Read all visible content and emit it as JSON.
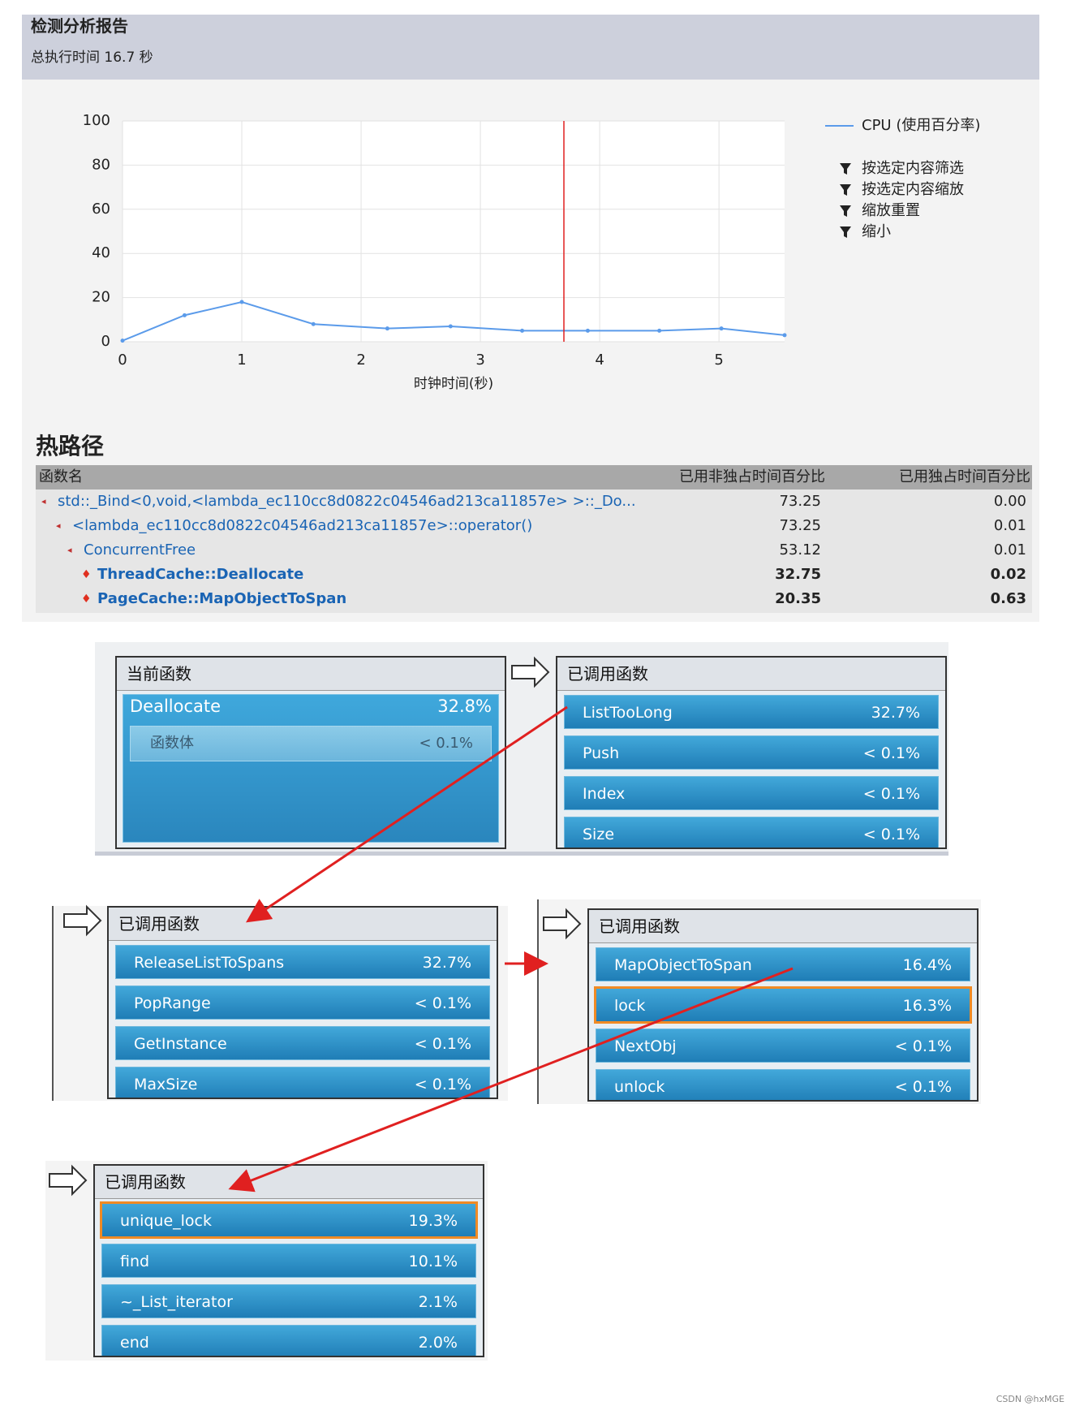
{
  "header": {
    "title": "检测分析报告",
    "subtitle": "总执行时间 16.7 秒"
  },
  "chart_data": {
    "type": "line",
    "xlabel": "时钟时间(秒)",
    "x": [
      0,
      0.52,
      1,
      1.6,
      2.22,
      2.75,
      3.35,
      3.9,
      4.5,
      5.02,
      5.55
    ],
    "series": [
      {
        "name": "CPU (使用百分率)",
        "color": "#5b9bea",
        "values": [
          0.5,
          12,
          18,
          8,
          6,
          7,
          5,
          5,
          5,
          6,
          3
        ]
      }
    ],
    "xlim": [
      0,
      5.55
    ],
    "ylim": [
      0,
      100
    ],
    "xticks": [
      0,
      1,
      2,
      3,
      4,
      5
    ],
    "yticks": [
      0,
      20,
      40,
      60,
      80,
      100
    ],
    "grid": true,
    "cursor_x": 3.7,
    "cursor_color": "#e02020",
    "menu": [
      "按选定内容筛选",
      "按选定内容缩放",
      "缩放重置",
      "缩小"
    ]
  },
  "hot_path": {
    "title": "热路径",
    "columns": [
      "函数名",
      "已用非独占时间百分比",
      "已用独占时间百分比"
    ],
    "rows": [
      {
        "name": "std::_Bind<0,void,<lambda_ec110cc8d0822c04546ad213ca11857e> >::_Do...",
        "inclusive": "73.25",
        "exclusive": "0.00",
        "level": 0,
        "hot": false
      },
      {
        "name": "<lambda_ec110cc8d0822c04546ad213ca11857e>::operator()",
        "inclusive": "73.25",
        "exclusive": "0.01",
        "level": 1,
        "hot": false
      },
      {
        "name": "ConcurrentFree",
        "inclusive": "53.12",
        "exclusive": "0.01",
        "level": 2,
        "hot": false
      },
      {
        "name": "ThreadCache::Deallocate",
        "inclusive": "32.75",
        "exclusive": "0.02",
        "level": 3,
        "hot": true
      },
      {
        "name": "PageCache::MapObjectToSpan",
        "inclusive": "20.35",
        "exclusive": "0.63",
        "level": 3,
        "hot": true
      }
    ]
  },
  "current": {
    "title": "当前函数",
    "name": "Deallocate",
    "value": "32.8%",
    "sub_name": "函数体",
    "sub_value": "< 0.1%"
  },
  "panels": [
    {
      "title": "已调用函数",
      "items": [
        {
          "name": "ListTooLong",
          "value": "32.7%"
        },
        {
          "name": "Push",
          "value": "< 0.1%"
        },
        {
          "name": "Index",
          "value": "< 0.1%"
        },
        {
          "name": "Size",
          "value": "< 0.1%"
        }
      ]
    },
    {
      "title": "已调用函数",
      "items": [
        {
          "name": "ReleaseListToSpans",
          "value": "32.7%"
        },
        {
          "name": "PopRange",
          "value": "< 0.1%"
        },
        {
          "name": "GetInstance",
          "value": "< 0.1%"
        },
        {
          "name": "MaxSize",
          "value": "< 0.1%"
        }
      ]
    },
    {
      "title": "已调用函数",
      "items": [
        {
          "name": "MapObjectToSpan",
          "value": "16.4%"
        },
        {
          "name": "lock",
          "value": "16.3%",
          "highlight": true
        },
        {
          "name": "NextObj",
          "value": "< 0.1%"
        },
        {
          "name": "unlock",
          "value": "< 0.1%"
        }
      ]
    },
    {
      "title": "已调用函数",
      "items": [
        {
          "name": "unique_lock",
          "value": "19.3%",
          "highlight": true
        },
        {
          "name": "find",
          "value": "10.1%"
        },
        {
          "name": "~_List_iterator",
          "value": "2.1%"
        },
        {
          "name": "end",
          "value": "2.0%"
        }
      ]
    }
  ],
  "watermark": "CSDN @hxMGE"
}
